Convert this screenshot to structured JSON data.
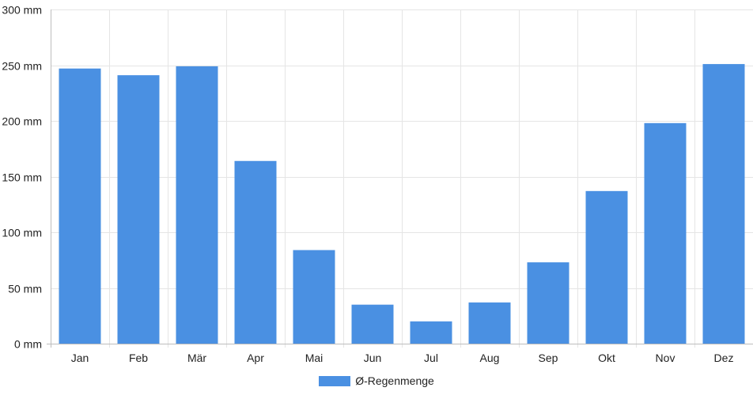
{
  "chart_data": {
    "type": "bar",
    "categories": [
      "Jan",
      "Feb",
      "Mär",
      "Apr",
      "Mai",
      "Jun",
      "Jul",
      "Aug",
      "Sep",
      "Okt",
      "Nov",
      "Dez"
    ],
    "series": [
      {
        "name": "Ø-Regenmenge",
        "values": [
          247,
          241,
          249,
          164,
          84,
          35,
          20,
          37,
          73,
          137,
          198,
          251
        ]
      }
    ],
    "ylim": [
      0,
      300
    ],
    "yticks": [
      {
        "value": 0,
        "label": "0 mm"
      },
      {
        "value": 50,
        "label": "50 mm"
      },
      {
        "value": 100,
        "label": "100 mm"
      },
      {
        "value": 150,
        "label": "150 mm"
      },
      {
        "value": 200,
        "label": "200 mm"
      },
      {
        "value": 250,
        "label": "250 mm"
      },
      {
        "value": 300,
        "label": "300 mm"
      }
    ],
    "unit": "mm",
    "grid": true,
    "legend_position": "bottom",
    "colors": {
      "bar": "#4a90e2",
      "grid": "#e5e5e5",
      "axis": "#bdbdbd"
    }
  }
}
